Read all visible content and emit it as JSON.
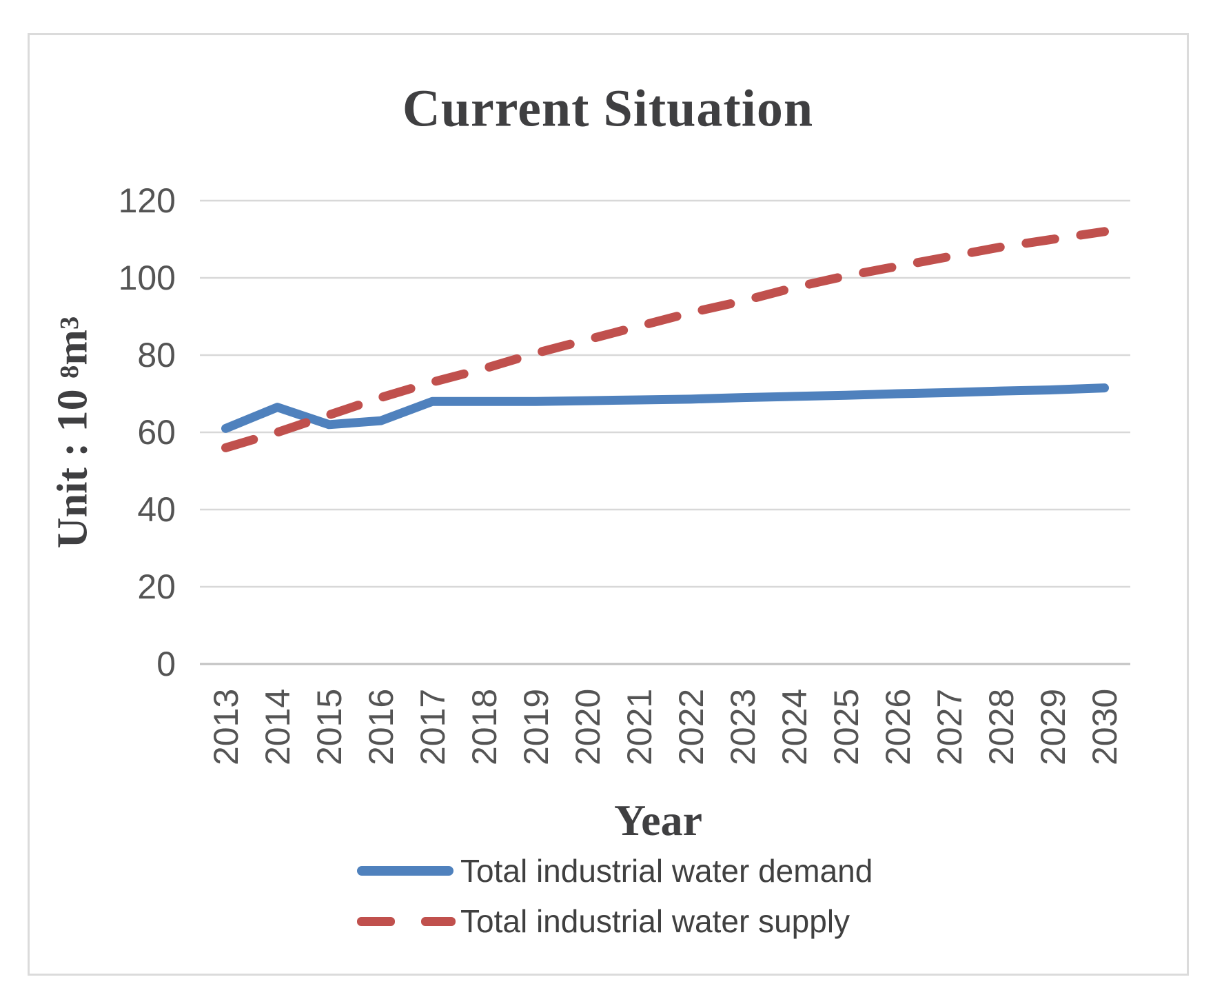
{
  "figure": {
    "title": "Current Situation",
    "x_axis_title": "Year",
    "y_axis_title": {
      "prefix": "Unit : 10 ",
      "sup1": "8",
      "mid": "m",
      "sup2": "3"
    }
  },
  "colors": {
    "demand_blue": "#4F81BD",
    "supply_red": "#C0504D",
    "gridline": "#d8d8d8",
    "axis_line": "#c2c2c2",
    "tick_text": "#545454",
    "title_text": "#3f3f41",
    "border": "#dbdbdb"
  },
  "chart_data": {
    "type": "line",
    "title": "Current Situation",
    "xlabel": "Year",
    "ylabel": "Unit : 10^8 m^3",
    "categories": [
      "2013",
      "2014",
      "2015",
      "2016",
      "2017",
      "2018",
      "2019",
      "2020",
      "2021",
      "2022",
      "2023",
      "2024",
      "2025",
      "2026",
      "2027",
      "2028",
      "2029",
      "2030"
    ],
    "series": [
      {
        "name": "Total industrial water demand",
        "style": "solid",
        "color": "#4F81BD",
        "values": [
          61,
          66.5,
          62,
          63,
          68,
          68,
          68,
          68.2,
          68.4,
          68.6,
          69,
          69.3,
          69.6,
          70,
          70.3,
          70.7,
          71,
          71.5
        ]
      },
      {
        "name": "Total industrial water supply",
        "style": "dashed",
        "color": "#C0504D",
        "values": [
          56,
          60,
          64.5,
          69,
          73,
          76.5,
          80.5,
          84,
          87.5,
          91,
          94,
          97.5,
          100.5,
          103,
          105.5,
          108,
          110,
          112
        ]
      }
    ],
    "ylim": [
      0,
      120
    ],
    "yticks": [
      0,
      20,
      40,
      60,
      80,
      100,
      120
    ],
    "grid": true,
    "legend_position": "bottom"
  }
}
